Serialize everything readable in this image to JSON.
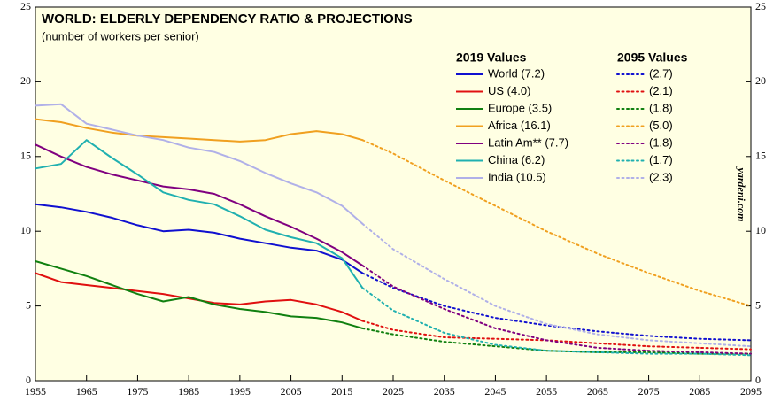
{
  "chart_data": {
    "type": "line",
    "title": "WORLD: ELDERLY DEPENDENCY RATIO & PROJECTIONS",
    "subtitle": "(number of workers per senior)",
    "legend_headings": [
      "2019 Values",
      "2095 Values"
    ],
    "watermark": "yardeni.com",
    "xlim": [
      1955,
      2095
    ],
    "xticks": [
      1955,
      1965,
      1975,
      1985,
      1995,
      2005,
      2015,
      2025,
      2035,
      2045,
      2055,
      2065,
      2075,
      2085,
      2095
    ],
    "ylim": [
      0,
      25
    ],
    "yticks": [
      0,
      5,
      10,
      15,
      20,
      25
    ],
    "grid": false,
    "series": [
      {
        "name": "World (7.2)",
        "color": "#1010d0",
        "style": "solid",
        "x": [
          1955,
          1960,
          1965,
          1970,
          1975,
          1980,
          1985,
          1990,
          1995,
          2000,
          2005,
          2010,
          2015,
          2019
        ],
        "values": [
          11.8,
          11.6,
          11.3,
          10.9,
          10.4,
          10.0,
          10.1,
          9.9,
          9.5,
          9.2,
          8.9,
          8.7,
          8.1,
          7.2
        ]
      },
      {
        "name": "US (4.0)",
        "color": "#e01010",
        "style": "solid",
        "x": [
          1955,
          1960,
          1965,
          1970,
          1975,
          1980,
          1985,
          1990,
          1995,
          2000,
          2005,
          2010,
          2015,
          2019
        ],
        "values": [
          7.2,
          6.6,
          6.4,
          6.2,
          6.0,
          5.8,
          5.5,
          5.2,
          5.1,
          5.3,
          5.4,
          5.1,
          4.6,
          4.0
        ]
      },
      {
        "name": "Europe (3.5)",
        "color": "#108010",
        "style": "solid",
        "x": [
          1955,
          1960,
          1965,
          1970,
          1975,
          1980,
          1985,
          1990,
          1995,
          2000,
          2005,
          2010,
          2015,
          2019
        ],
        "values": [
          8.0,
          7.5,
          7.0,
          6.4,
          5.8,
          5.3,
          5.6,
          5.1,
          4.8,
          4.6,
          4.3,
          4.2,
          3.9,
          3.5
        ]
      },
      {
        "name": "Africa (16.1)",
        "color": "#f0a020",
        "style": "solid",
        "x": [
          1955,
          1960,
          1965,
          1970,
          1975,
          1980,
          1985,
          1990,
          1995,
          2000,
          2005,
          2010,
          2015,
          2019
        ],
        "values": [
          17.5,
          17.3,
          16.9,
          16.6,
          16.4,
          16.3,
          16.2,
          16.1,
          16.0,
          16.1,
          16.5,
          16.7,
          16.5,
          16.1
        ]
      },
      {
        "name": "Latin Am** (7.7)",
        "color": "#800080",
        "style": "solid",
        "x": [
          1955,
          1960,
          1965,
          1970,
          1975,
          1980,
          1985,
          1990,
          1995,
          2000,
          2005,
          2010,
          2015,
          2019
        ],
        "values": [
          15.8,
          15.0,
          14.3,
          13.8,
          13.4,
          13.0,
          12.8,
          12.5,
          11.8,
          11.0,
          10.3,
          9.5,
          8.6,
          7.7
        ]
      },
      {
        "name": "China (6.2)",
        "color": "#20b0b0",
        "style": "solid",
        "x": [
          1955,
          1960,
          1965,
          1970,
          1975,
          1980,
          1985,
          1990,
          1995,
          2000,
          2005,
          2010,
          2015,
          2019
        ],
        "values": [
          14.2,
          14.5,
          16.1,
          14.9,
          13.8,
          12.6,
          12.1,
          11.8,
          11.0,
          10.1,
          9.6,
          9.2,
          8.2,
          6.2
        ]
      },
      {
        "name": "India (10.5)",
        "color": "#b0b0e8",
        "style": "solid",
        "x": [
          1955,
          1960,
          1965,
          1970,
          1975,
          1980,
          1985,
          1990,
          1995,
          2000,
          2005,
          2010,
          2015,
          2019
        ],
        "values": [
          18.4,
          18.5,
          17.2,
          16.8,
          16.4,
          16.1,
          15.6,
          15.3,
          14.7,
          13.9,
          13.2,
          12.6,
          11.7,
          10.5
        ]
      },
      {
        "name": "(2.7)",
        "color": "#1010d0",
        "style": "dotted",
        "x": [
          2019,
          2025,
          2035,
          2045,
          2055,
          2065,
          2075,
          2085,
          2095
        ],
        "values": [
          7.2,
          6.2,
          5.0,
          4.2,
          3.7,
          3.3,
          3.0,
          2.8,
          2.7
        ]
      },
      {
        "name": "(2.1)",
        "color": "#e01010",
        "style": "dotted",
        "x": [
          2019,
          2025,
          2035,
          2045,
          2055,
          2065,
          2075,
          2085,
          2095
        ],
        "values": [
          4.0,
          3.4,
          2.9,
          2.8,
          2.7,
          2.5,
          2.3,
          2.2,
          2.1
        ]
      },
      {
        "name": "(1.8)",
        "color": "#108010",
        "style": "dotted",
        "x": [
          2019,
          2025,
          2035,
          2045,
          2055,
          2065,
          2075,
          2085,
          2095
        ],
        "values": [
          3.5,
          3.1,
          2.6,
          2.3,
          2.0,
          1.9,
          1.9,
          1.8,
          1.8
        ]
      },
      {
        "name": "(5.0)",
        "color": "#f0a020",
        "style": "dotted",
        "x": [
          2019,
          2025,
          2035,
          2045,
          2055,
          2065,
          2075,
          2085,
          2095
        ],
        "values": [
          16.1,
          15.2,
          13.4,
          11.7,
          10.0,
          8.5,
          7.2,
          6.0,
          5.0
        ]
      },
      {
        "name": "(1.8)",
        "color": "#800080",
        "style": "dotted",
        "x": [
          2019,
          2025,
          2035,
          2045,
          2055,
          2065,
          2075,
          2085,
          2095
        ],
        "values": [
          7.7,
          6.3,
          4.8,
          3.5,
          2.7,
          2.2,
          2.0,
          1.9,
          1.8
        ]
      },
      {
        "name": "(1.7)",
        "color": "#20b0b0",
        "style": "dotted",
        "x": [
          2019,
          2025,
          2035,
          2045,
          2055,
          2065,
          2075,
          2085,
          2095
        ],
        "values": [
          6.2,
          4.7,
          3.2,
          2.4,
          2.0,
          1.9,
          1.8,
          1.8,
          1.7
        ]
      },
      {
        "name": "(2.3)",
        "color": "#b0b0e8",
        "style": "dotted",
        "x": [
          2019,
          2025,
          2035,
          2045,
          2055,
          2065,
          2075,
          2085,
          2095
        ],
        "values": [
          10.5,
          8.8,
          6.8,
          5.0,
          3.8,
          3.1,
          2.7,
          2.5,
          2.3
        ]
      }
    ]
  }
}
